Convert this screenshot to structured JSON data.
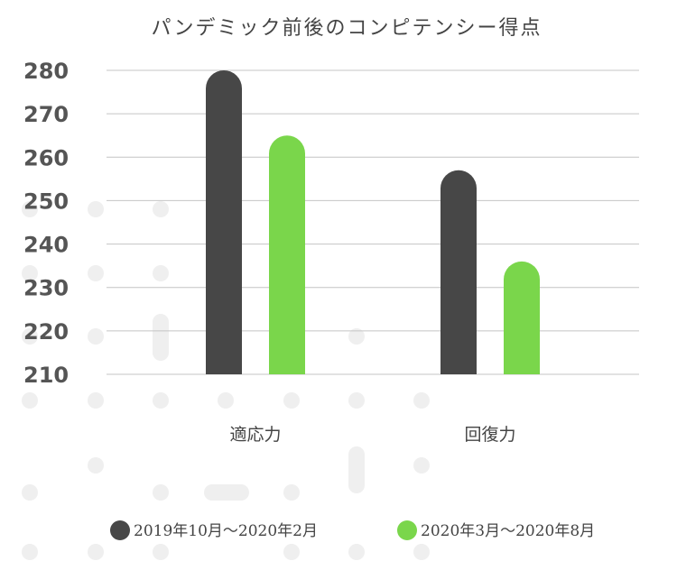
{
  "chart_data": {
    "type": "bar",
    "title": "パンデミック前後のコンピテンシー得点",
    "categories": [
      "適応力",
      "回復力"
    ],
    "series": [
      {
        "name": "2019年10月～2020年2月",
        "color": "#474747",
        "values": [
          280,
          257
        ]
      },
      {
        "name": "2020年3月～2020年8月",
        "color": "#7ad64b",
        "values": [
          265,
          236
        ]
      }
    ],
    "ylim": [
      210,
      280
    ],
    "yticks": [
      210,
      220,
      230,
      240,
      250,
      260,
      270,
      280
    ],
    "grid": true,
    "legend": "bottom-center",
    "xlabel": "",
    "ylabel": ""
  }
}
